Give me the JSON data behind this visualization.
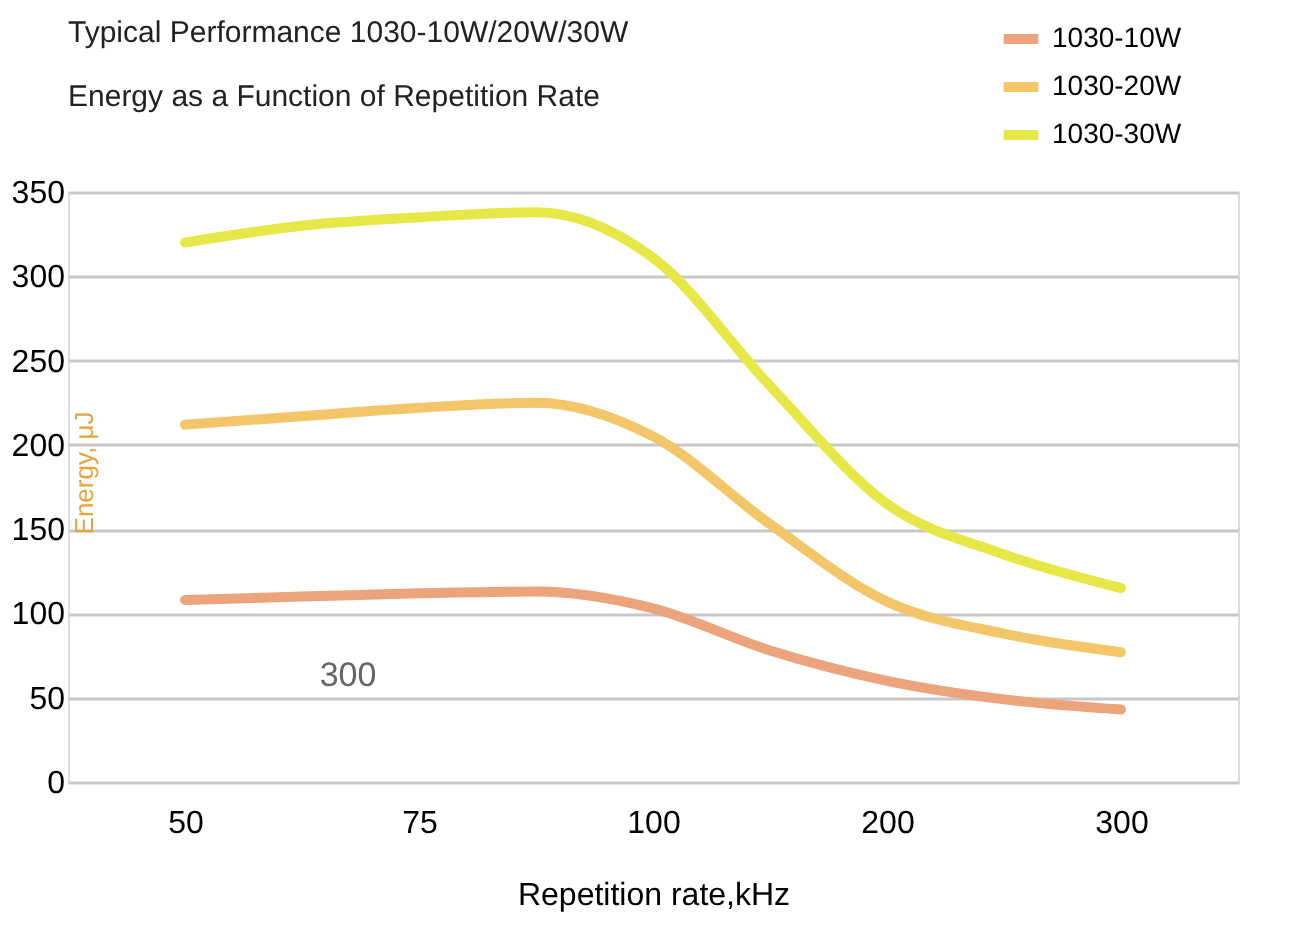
{
  "chart_data": {
    "type": "line",
    "title": "Typical Performance 1030-10W/20W/30W",
    "subtitle": "Energy as a Function of Repetition Rate",
    "xlabel": "Repetition rate,kHz",
    "ylabel": "Energy, μJ",
    "categories": [
      "50",
      null,
      "75",
      null,
      "100",
      null,
      "200",
      null,
      "300"
    ],
    "series": [
      {
        "name": "1030-10W",
        "color": "#eba47c",
        "values": [
          108,
          110,
          112,
          113,
          103,
          78,
          60,
          49,
          43
        ]
      },
      {
        "name": "1030-20W",
        "color": "#f3c66a",
        "values": [
          212,
          217,
          222,
          225,
          205,
          153,
          107,
          88,
          77
        ]
      },
      {
        "name": "1030-30W",
        "color": "#e5e846",
        "values": [
          320,
          330,
          335,
          338,
          311,
          235,
          165,
          135,
          115
        ]
      }
    ],
    "ylim": [
      0,
      350
    ],
    "yticks": [
      0,
      50,
      100,
      150,
      200,
      250,
      300,
      350
    ],
    "grid": "y",
    "legend": "top right",
    "marker": "none",
    "line_style": "solid",
    "annotations": [
      "300"
    ]
  }
}
